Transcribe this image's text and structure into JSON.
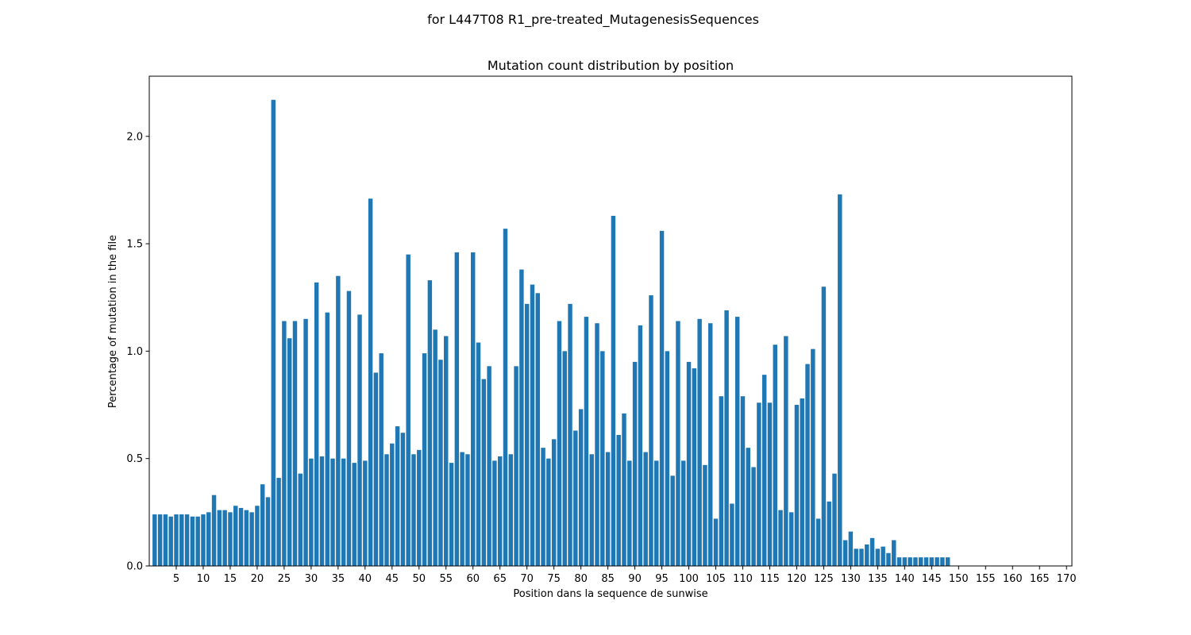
{
  "figure": {
    "suptitle": "for L447T08 R1_pre-treated_MutagenesisSequences"
  },
  "chart_data": {
    "type": "bar",
    "title": "Mutation count distribution by position",
    "xlabel": "Position dans la sequence de sunwise",
    "ylabel": "Percentage of mutation in the file",
    "bar_color": "#1f77b4",
    "xlim": [
      0,
      171
    ],
    "ylim": [
      0,
      2.28
    ],
    "xticks": [
      5,
      10,
      15,
      20,
      25,
      30,
      35,
      40,
      45,
      50,
      55,
      60,
      65,
      70,
      75,
      80,
      85,
      90,
      95,
      100,
      105,
      110,
      115,
      120,
      125,
      130,
      135,
      140,
      145,
      150,
      155,
      160,
      165,
      170
    ],
    "yticks": [
      0.0,
      0.5,
      1.0,
      1.5,
      2.0
    ],
    "ytick_labels": [
      "0.0",
      "0.5",
      "1.0",
      "1.5",
      "2.0"
    ],
    "grid": false,
    "x": [
      1,
      2,
      3,
      4,
      5,
      6,
      7,
      8,
      9,
      10,
      11,
      12,
      13,
      14,
      15,
      16,
      17,
      18,
      19,
      20,
      21,
      22,
      23,
      24,
      25,
      26,
      27,
      28,
      29,
      30,
      31,
      32,
      33,
      34,
      35,
      36,
      37,
      38,
      39,
      40,
      41,
      42,
      43,
      44,
      45,
      46,
      47,
      48,
      49,
      50,
      51,
      52,
      53,
      54,
      55,
      56,
      57,
      58,
      59,
      60,
      61,
      62,
      63,
      64,
      65,
      66,
      67,
      68,
      69,
      70,
      71,
      72,
      73,
      74,
      75,
      76,
      77,
      78,
      79,
      80,
      81,
      82,
      83,
      84,
      85,
      86,
      87,
      88,
      89,
      90,
      91,
      92,
      93,
      94,
      95,
      96,
      97,
      98,
      99,
      100,
      101,
      102,
      103,
      104,
      105,
      106,
      107,
      108,
      109,
      110,
      111,
      112,
      113,
      114,
      115,
      116,
      117,
      118,
      119,
      120,
      121,
      122,
      123,
      124,
      125,
      126,
      127,
      128,
      129,
      130,
      131,
      132,
      133,
      134,
      135,
      136,
      137,
      138,
      139,
      140,
      141,
      142,
      143,
      144,
      145,
      146,
      147,
      148
    ],
    "values": [
      0.24,
      0.24,
      0.24,
      0.23,
      0.24,
      0.24,
      0.24,
      0.23,
      0.23,
      0.24,
      0.25,
      0.33,
      0.26,
      0.26,
      0.25,
      0.28,
      0.27,
      0.26,
      0.25,
      0.28,
      0.38,
      0.32,
      2.17,
      0.41,
      1.14,
      1.06,
      1.14,
      0.43,
      1.15,
      0.5,
      1.32,
      0.51,
      1.18,
      0.5,
      1.35,
      0.5,
      1.28,
      0.48,
      1.17,
      0.49,
      1.71,
      0.9,
      0.99,
      0.52,
      0.57,
      0.65,
      0.62,
      1.45,
      0.52,
      0.54,
      0.99,
      1.33,
      1.1,
      0.96,
      1.07,
      0.48,
      1.46,
      0.53,
      0.52,
      1.46,
      1.04,
      0.87,
      0.93,
      0.49,
      0.51,
      1.57,
      0.52,
      0.93,
      1.38,
      1.22,
      1.31,
      1.27,
      0.55,
      0.5,
      0.59,
      1.14,
      1.0,
      1.22,
      0.63,
      0.73,
      1.16,
      0.52,
      1.13,
      1.0,
      0.53,
      1.63,
      0.61,
      0.71,
      0.49,
      0.95,
      1.12,
      0.53,
      1.26,
      0.49,
      1.56,
      1.0,
      0.42,
      1.14,
      0.49,
      0.95,
      0.92,
      1.15,
      0.47,
      1.13,
      0.22,
      0.79,
      1.19,
      0.29,
      1.16,
      0.79,
      0.55,
      0.46,
      0.76,
      0.89,
      0.76,
      1.03,
      0.26,
      1.07,
      0.25,
      0.75,
      0.78,
      0.94,
      1.01,
      0.22,
      1.3,
      0.3,
      0.43,
      1.73,
      0.12,
      0.16,
      0.08,
      0.08,
      0.1,
      0.13,
      0.08,
      0.09,
      0.06,
      0.12,
      0.04,
      0.04,
      0.04,
      0.04,
      0.04,
      0.04,
      0.04,
      0.04,
      0.04,
      0.04
    ]
  }
}
